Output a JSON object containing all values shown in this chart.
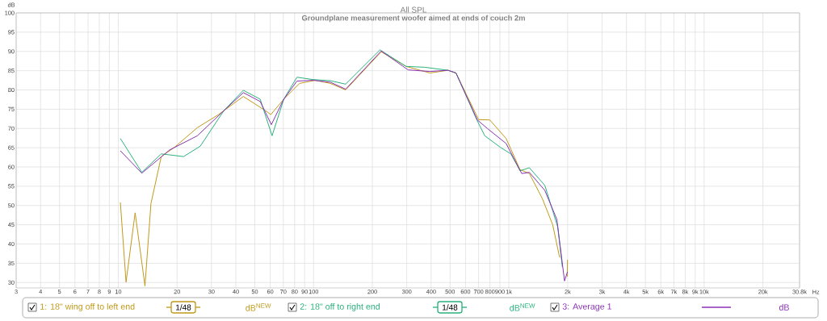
{
  "chart_data": {
    "type": "line",
    "title": "All SPL",
    "subtitle": "Groundplane measurement woofer aimed at ends of couch 2m",
    "xlabel": "Hz",
    "ylabel": "dB",
    "log": "x",
    "grid": true,
    "legend": "bottom",
    "line_style": "solid",
    "xlim": [
      3,
      30800
    ],
    "ylim": [
      28.6,
      100
    ],
    "xticks": [
      3,
      4,
      5,
      6,
      7,
      8,
      9,
      10,
      20,
      30,
      40,
      50,
      60,
      70,
      80,
      90,
      100,
      200,
      300,
      400,
      500,
      600,
      700,
      800,
      900,
      {
        "value": 1000,
        "label": "1k"
      },
      {
        "value": 2000,
        "label": "2k"
      },
      {
        "value": 3000,
        "label": "3k"
      },
      {
        "value": 4000,
        "label": "4k"
      },
      {
        "value": 5000,
        "label": "5k"
      },
      {
        "value": 6000,
        "label": "6k"
      },
      {
        "value": 7000,
        "label": "7k"
      },
      {
        "value": 8000,
        "label": "8k"
      },
      {
        "value": 9000,
        "label": "9k"
      },
      {
        "value": 10000,
        "label": "10k"
      },
      {
        "value": 20000,
        "label": "20k"
      },
      {
        "value": 30800,
        "label": "30.8k"
      }
    ],
    "yticks": [
      30,
      35,
      40,
      45,
      50,
      55,
      60,
      65,
      70,
      75,
      80,
      85,
      90,
      95,
      100
    ],
    "annotations": [
      "1/48",
      "dB$^{NEW}$",
      "1/48",
      "dB$^{NEW}$",
      "dB"
    ],
    "series": [
      {
        "name": "1: 18\" wing off to left end",
        "color": "#c09a1a",
        "x": [
          10.25,
          10.96,
          12.2,
          13.7,
          14.7,
          16.6,
          19.4,
          25.4,
          32.6,
          43.7,
          56.8,
          60.4,
          70.4,
          84.8,
          102,
          122,
          146,
          222,
          298,
          394,
          488,
          536,
          700,
          799,
          968,
          1141,
          1274,
          1484,
          1677,
          1820,
          1930,
          1990,
          1997
        ],
        "values": [
          50.8,
          30.1,
          48.1,
          29.1,
          50.5,
          62.7,
          65.1,
          70.2,
          73.6,
          78.3,
          74.6,
          73.6,
          77.6,
          81.7,
          82.5,
          81.7,
          80.0,
          89.9,
          86.1,
          84.4,
          85.1,
          84.4,
          72.3,
          72.2,
          67.4,
          59.3,
          58.3,
          51.8,
          45.0,
          36.5,
          null,
          31.5,
          35.9
        ]
      },
      {
        "name": "2: 18\" off to right end",
        "color": "#2ab27d",
        "x": [
          10.25,
          13.2,
          16.6,
          21.6,
          26.3,
          34.7,
          43.7,
          53.3,
          61.3,
          70.4,
          82.2,
          98.9,
          122,
          146,
          219,
          298,
          370,
          488,
          536,
          686,
          753,
          905,
          1024,
          1141,
          1274,
          1529,
          1780,
          1880
        ],
        "values": [
          67.4,
          58.6,
          63.4,
          62.7,
          65.4,
          74.6,
          79.9,
          77.6,
          68.1,
          77.6,
          83.3,
          82.7,
          82.4,
          81.5,
          90.4,
          86.1,
          85.9,
          85.1,
          84.4,
          72.2,
          68.1,
          65.1,
          63.4,
          59.0,
          59.8,
          55.2,
          44.4,
          34.0
        ]
      },
      {
        "name": "3: Average 1",
        "color": "#8b32b5",
        "x": [
          10.25,
          13.2,
          18.3,
          25.4,
          34.7,
          43.7,
          53.3,
          60.8,
          70.4,
          82.2,
          100,
          122,
          146,
          222,
          305,
          394,
          488,
          536,
          690,
          776,
          968,
          1164,
          1274,
          1529,
          1761,
          1928,
          1997
        ],
        "values": [
          64.2,
          58.4,
          64.4,
          68.1,
          74.6,
          79.3,
          77.0,
          71.0,
          77.6,
          82.3,
          82.5,
          82.0,
          80.2,
          90.1,
          85.2,
          84.8,
          85.1,
          84.4,
          72.2,
          70.0,
          66.1,
          58.3,
          58.6,
          53.9,
          46.4,
          30.4,
          32.8
        ]
      }
    ]
  }
}
